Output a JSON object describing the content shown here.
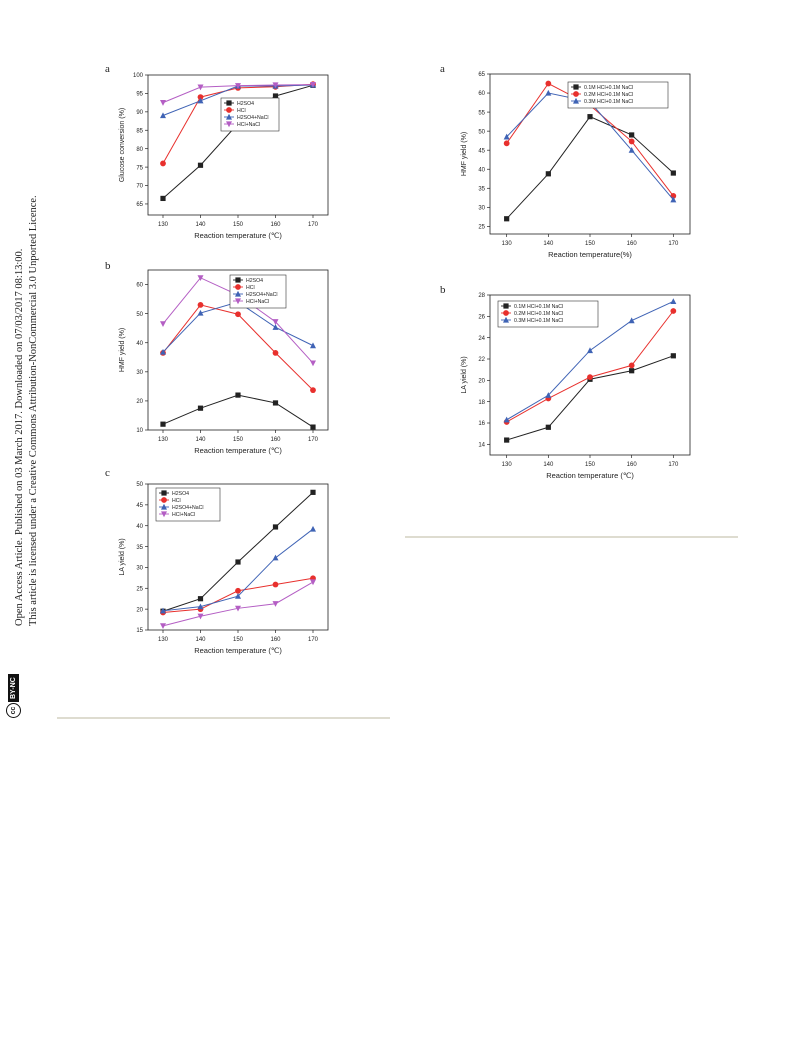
{
  "sidebar": {
    "line1": "Open Access Article. Published on 03 March 2017. Downloaded on 07/03/2017 08:13:00.",
    "line2": "This article is licensed under a Creative Commons Attribution-NonCommercial 3.0 Unported Licence.",
    "cc_label": "cc",
    "license_badge": "BY-NC"
  },
  "charts": [
    {
      "id": "left-a",
      "panel": "a",
      "chart_data": {
        "type": "line",
        "xlabel": "Reaction temperature (℃)",
        "ylabel": "Glucose conversion (%)",
        "x": [
          130,
          140,
          150,
          160,
          170
        ],
        "xticks": [
          "130",
          "140",
          "150",
          "160",
          "170"
        ],
        "ylim": [
          62,
          100
        ],
        "yticks": [
          65,
          70,
          75,
          80,
          85,
          90,
          95,
          100
        ],
        "legend_position": "right",
        "series": [
          {
            "name": "H2SO4",
            "color": "#222222",
            "marker": "square",
            "values": [
              66.5,
              75.5,
              86.8,
              94.3,
              97.2
            ]
          },
          {
            "name": "HCl",
            "color": "#e8302d",
            "marker": "circle",
            "values": [
              76,
              94,
              96.5,
              96.8,
              97.5
            ]
          },
          {
            "name": "H2SO4+NaCl",
            "color": "#3f63b5",
            "marker": "triangle",
            "values": [
              89,
              93,
              97,
              97,
              97.3
            ]
          },
          {
            "name": "HCl+NaCl",
            "color": "#b45ec4",
            "marker": "triangle-down",
            "values": [
              92.5,
              96.7,
              97.1,
              97.3,
              97.4
            ]
          }
        ]
      }
    },
    {
      "id": "left-b",
      "panel": "b",
      "chart_data": {
        "type": "line",
        "xlabel": "Reaction  temperature (℃)",
        "ylabel": "HMF yield (%)",
        "x": [
          130,
          140,
          150,
          160,
          170
        ],
        "xticks": [
          "130",
          "140",
          "150",
          "160",
          "170"
        ],
        "ylim": [
          10,
          65
        ],
        "yticks": [
          10,
          20,
          30,
          40,
          50,
          60
        ],
        "legend_position": "top-right",
        "series": [
          {
            "name": "H2SO4",
            "color": "#222222",
            "marker": "square",
            "values": [
              12,
              17.5,
              22,
              19.3,
              11
            ]
          },
          {
            "name": "HCl",
            "color": "#e8302d",
            "marker": "circle",
            "values": [
              36.5,
              53,
              49.8,
              36.5,
              23.7
            ]
          },
          {
            "name": "H2SO4+NaCl",
            "color": "#3f63b5",
            "marker": "triangle",
            "values": [
              36.8,
              50.2,
              54,
              45.3,
              39
            ]
          },
          {
            "name": "HCl+NaCl",
            "color": "#b45ec4",
            "marker": "triangle-down",
            "values": [
              46.5,
              62.3,
              56.4,
              47.2,
              33
            ]
          }
        ]
      }
    },
    {
      "id": "left-c",
      "panel": "c",
      "chart_data": {
        "type": "line",
        "xlabel": "Reaction temperature (℃)",
        "ylabel": "LA yield (%)",
        "x": [
          130,
          140,
          150,
          160,
          170
        ],
        "xticks": [
          "130",
          "140",
          "150",
          "160",
          "170"
        ],
        "ylim": [
          15,
          50
        ],
        "yticks": [
          15,
          20,
          25,
          30,
          35,
          40,
          45,
          50
        ],
        "legend_position": "top-left",
        "series": [
          {
            "name": "H2SO4",
            "color": "#222222",
            "marker": "square",
            "values": [
              19.5,
              22.5,
              31.3,
              39.7,
              48
            ]
          },
          {
            "name": "HCl",
            "color": "#e8302d",
            "marker": "circle",
            "values": [
              19.2,
              20,
              24.4,
              25.9,
              27.4
            ]
          },
          {
            "name": "H2SO4+NaCl",
            "color": "#3f63b5",
            "marker": "triangle",
            "values": [
              19.6,
              20.6,
              23.1,
              32.3,
              39.2
            ]
          },
          {
            "name": "HCl+NaCl",
            "color": "#b45ec4",
            "marker": "triangle-down",
            "values": [
              16,
              18.3,
              20.2,
              21.3,
              26.5
            ]
          }
        ]
      }
    },
    {
      "id": "right-a",
      "panel": "a",
      "chart_data": {
        "type": "line",
        "xlabel": "Reaction temperature(%)",
        "ylabel": "HMF yield (%)",
        "x": [
          130,
          140,
          150,
          160,
          170
        ],
        "xticks": [
          "130",
          "140",
          "150",
          "160",
          "170"
        ],
        "ylim": [
          23,
          65
        ],
        "yticks": [
          25,
          30,
          35,
          40,
          45,
          50,
          55,
          60,
          65
        ],
        "legend_position": "top-right",
        "series": [
          {
            "name": "0.1M HCl+0.1M NaCl",
            "color": "#222222",
            "marker": "square",
            "values": [
              27,
              38.8,
              53.8,
              49,
              39
            ]
          },
          {
            "name": "0.2M HCl+0.1M NaCl",
            "color": "#e8302d",
            "marker": "circle",
            "values": [
              46.8,
              62.5,
              56.8,
              47.3,
              33
            ]
          },
          {
            "name": "0.3M HCl+0.1M NaCl",
            "color": "#3f63b5",
            "marker": "triangle",
            "values": [
              48.5,
              60,
              57.7,
              45,
              32
            ]
          }
        ]
      }
    },
    {
      "id": "right-b",
      "panel": "b",
      "chart_data": {
        "type": "line",
        "xlabel": "Reaction temperature (℃)",
        "ylabel": "LA yield (%)",
        "x": [
          130,
          140,
          150,
          160,
          170
        ],
        "xticks": [
          "130",
          "140",
          "150",
          "160",
          "170"
        ],
        "ylim": [
          13,
          28
        ],
        "yticks": [
          14,
          16,
          18,
          20,
          22,
          24,
          26,
          28
        ],
        "legend_position": "top-left",
        "series": [
          {
            "name": "0.1M HCl+0.1M NaCl",
            "color": "#222222",
            "marker": "square",
            "values": [
              14.4,
              15.6,
              20.1,
              20.9,
              22.3
            ]
          },
          {
            "name": "0.2M HCl+0.1M NaCl",
            "color": "#e8302d",
            "marker": "circle",
            "values": [
              16.1,
              18.3,
              20.3,
              21.4,
              26.5
            ]
          },
          {
            "name": "0.3M HCl+0.1M NaCl",
            "color": "#3f63b5",
            "marker": "triangle",
            "values": [
              16.3,
              18.6,
              22.8,
              25.6,
              27.4
            ]
          }
        ]
      }
    }
  ]
}
